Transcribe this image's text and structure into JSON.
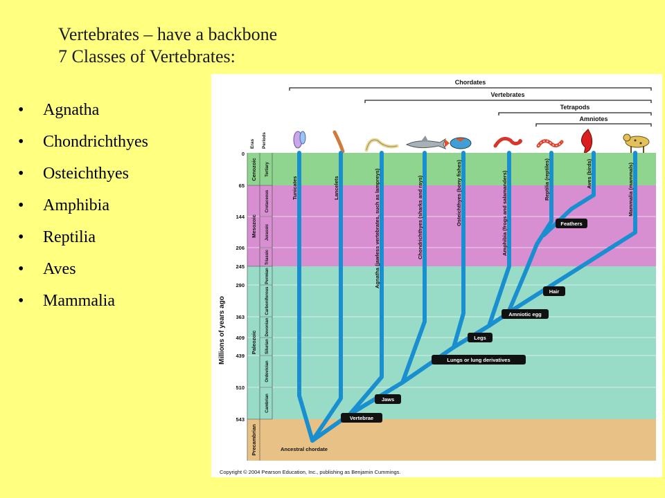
{
  "slide": {
    "title_line1": "Vertebrates – have a backbone",
    "title_line2": "7 Classes of Vertebrates:",
    "bullet_glyph": "•",
    "bullets": [
      "Agnatha",
      "Chondrichthyes",
      "Osteichthyes",
      "Amphibia",
      "Reptilia",
      "Aves",
      "Mammalia"
    ]
  },
  "figure": {
    "groups": {
      "chordates": "Chordates",
      "vertebrates": "Vertebrates",
      "tetrapods": "Tetrapods",
      "amniotes": "Amniotes"
    },
    "header_eras": "Eras",
    "header_periods": "Periods",
    "axis_label": "Millions of years ago",
    "ages": [
      "0",
      "65",
      "144",
      "206",
      "245",
      "290",
      "363",
      "409",
      "439",
      "510",
      "543"
    ],
    "eras": [
      "Cenozoic",
      "Mesozoic",
      "Paleozoic",
      "Precambrian"
    ],
    "periods": [
      "Tertiary",
      "Cretaceous",
      "Jurassic",
      "Triassic",
      "Permian",
      "Carboniferous",
      "Devonian",
      "Silurian",
      "Ordovician",
      "Cambrian"
    ],
    "taxa": [
      "Tunicates",
      "Lancelets",
      "Agnatha (jawless vertebrates, such as lampreys)",
      "Chondrichthyes (sharks and rays)",
      "Osteichthyes (bony fishes)",
      "Amphibia (frogs and salamanders)",
      "Reptilia (reptiles)",
      "Aves (birds)",
      "Mammalia (mammals)"
    ],
    "traits": {
      "feathers": "Feathers",
      "hair": "Hair",
      "amniotic_egg": "Amniotic egg",
      "legs": "Legs",
      "lungs": "Lungs or lung derivatives",
      "jaws": "Jaws",
      "vertebrae": "Vertebrae"
    },
    "root": "Ancestral chordate",
    "copyright": "Copyright © 2004 Pearson Education, Inc., publishing as Benjamin Cummings.",
    "colors": {
      "cenozoic": "#8fd58f",
      "mesozoic": "#d88fd1",
      "paleozoic": "#98dcc8",
      "precambrian": "#e8c186",
      "branch": "#1a8fcf",
      "background": "#ffff80"
    }
  }
}
